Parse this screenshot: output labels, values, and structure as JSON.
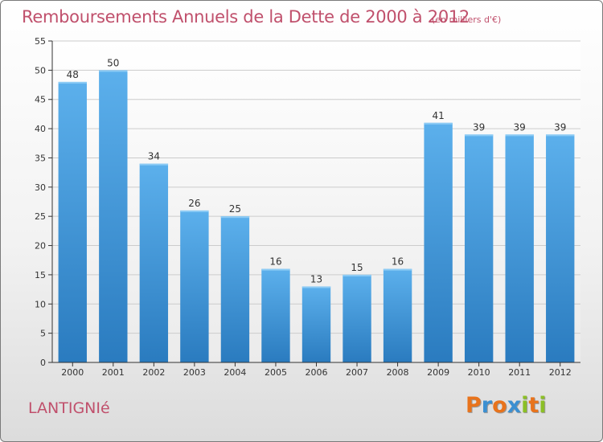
{
  "title": "Remboursements Annuels de la Dette de 2000 à 2012",
  "unit": "(en milliers d'€)",
  "commune": "LANTIGNIé",
  "logo": {
    "text": "Proxiti",
    "letters": [
      {
        "ch": "P",
        "color": "#e8731c"
      },
      {
        "ch": "r",
        "color": "#3b8fd1"
      },
      {
        "ch": "o",
        "color": "#e8731c"
      },
      {
        "ch": "x",
        "color": "#3b8fd1"
      },
      {
        "ch": "i",
        "color": "#8cbf26"
      },
      {
        "ch": "t",
        "color": "#e8731c"
      },
      {
        "ch": "i",
        "color": "#8cbf26"
      }
    ]
  },
  "colors": {
    "title": "#c0506c",
    "bar_top": "#5cb0ec",
    "bar_bottom": "#2a7bbf",
    "grid": "#cccccc",
    "axis": "#333333"
  },
  "chart_data": {
    "type": "bar",
    "categories": [
      "2000",
      "2001",
      "2002",
      "2003",
      "2004",
      "2005",
      "2006",
      "2007",
      "2008",
      "2009",
      "2010",
      "2011",
      "2012"
    ],
    "values": [
      48,
      50,
      34,
      26,
      25,
      16,
      13,
      15,
      16,
      41,
      39,
      39,
      39
    ],
    "ylim": [
      0,
      55
    ],
    "yticks": [
      0,
      5,
      10,
      15,
      20,
      25,
      30,
      35,
      40,
      45,
      50,
      55
    ],
    "grid": true
  }
}
